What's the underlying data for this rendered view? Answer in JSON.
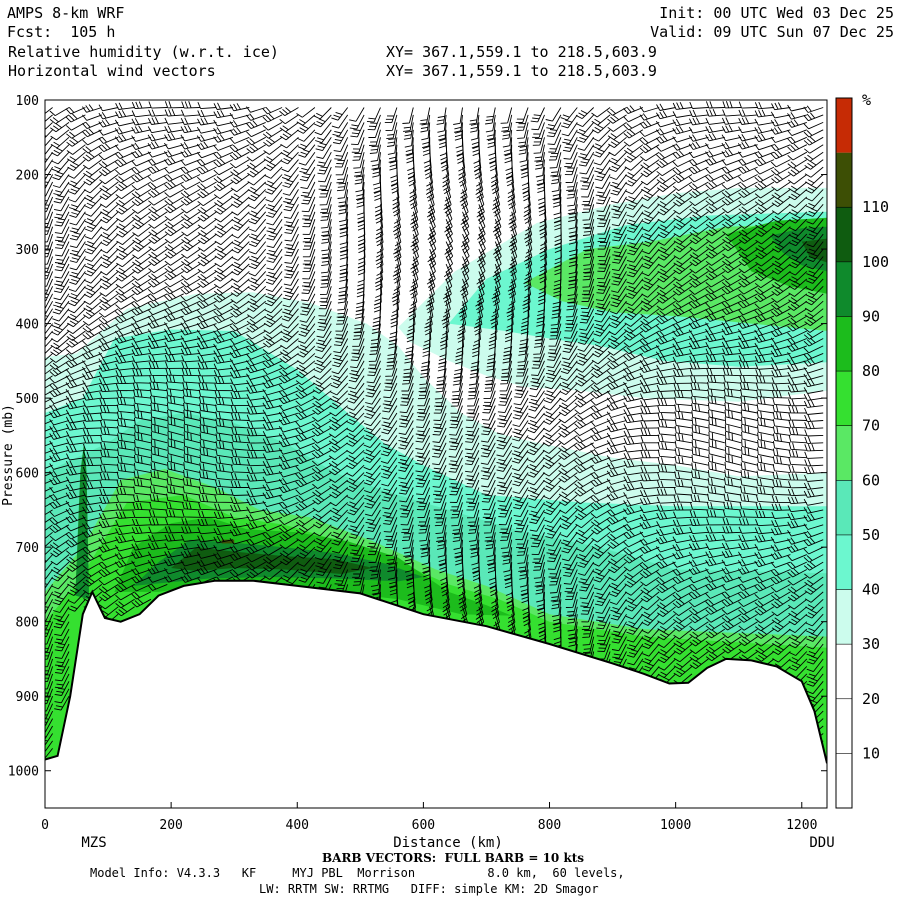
{
  "header": {
    "model": "AMPS 8-km WRF",
    "fcst": "Fcst:  105 h",
    "field1": "Relative humidity (w.r.t. ice)",
    "field2": "Horizontal wind vectors",
    "xy1": "XY= 367.1,559.1 to 218.5,603.9",
    "xy2": "XY= 367.1,559.1 to 218.5,603.9",
    "init": "Init: 00 UTC Wed 03 Dec 25",
    "valid": "Valid: 09 UTC Sun 07 Dec 25"
  },
  "footer": {
    "barb": "BARB VECTORS:  FULL BARB = 10 kts",
    "model_info": "Model Info: V4.3.3   KF     MYJ PBL  Morrison          8.0 km,  60 levels,",
    "physics": "LW: RRTM SW: RRTMG   DIFF: simple KM: 2D Smagor"
  },
  "chart_data": {
    "type": "heatmap",
    "title": "Relative humidity (w.r.t. ice) cross-section with horizontal wind barbs",
    "xlabel": "Distance (km)",
    "ylabel": "Pressure (mb)",
    "x_range": [
      0,
      1240
    ],
    "y_range": [
      1050,
      100
    ],
    "x_ticks": [
      0,
      200,
      400,
      600,
      800,
      1000,
      1200
    ],
    "y_ticks": [
      100,
      200,
      300,
      400,
      500,
      600,
      700,
      800,
      900,
      1000
    ],
    "endpoints": {
      "left": "MZS",
      "right": "DDU"
    },
    "colorbar": {
      "unit": "%",
      "levels": [
        0,
        10,
        20,
        30,
        40,
        50,
        60,
        70,
        80,
        90,
        100,
        110,
        120
      ],
      "tick_labels": [
        "10",
        "20",
        "30",
        "40",
        "50",
        "60",
        "70",
        "80",
        "90",
        "100",
        "110"
      ],
      "colors": [
        "#ffffff",
        "#ffffff",
        "#ffffff",
        "#ccfced",
        "#6cf7cf",
        "#5ae8b8",
        "#5ae864",
        "#35e030",
        "#1cbc1c",
        "#0f8a2c",
        "#0f5c10",
        "#3d4f05",
        "#c62b05"
      ]
    },
    "terrain_pressure": [
      [
        0,
        985
      ],
      [
        20,
        980
      ],
      [
        40,
        900
      ],
      [
        60,
        790
      ],
      [
        75,
        760
      ],
      [
        95,
        795
      ],
      [
        120,
        800
      ],
      [
        150,
        790
      ],
      [
        180,
        765
      ],
      [
        220,
        752
      ],
      [
        270,
        745
      ],
      [
        330,
        745
      ],
      [
        400,
        752
      ],
      [
        500,
        762
      ],
      [
        600,
        790
      ],
      [
        700,
        806
      ],
      [
        800,
        830
      ],
      [
        900,
        856
      ],
      [
        950,
        870
      ],
      [
        990,
        883
      ],
      [
        1020,
        882
      ],
      [
        1050,
        862
      ],
      [
        1080,
        850
      ],
      [
        1120,
        852
      ],
      [
        1160,
        860
      ],
      [
        1200,
        880
      ],
      [
        1220,
        920
      ],
      [
        1240,
        990
      ]
    ],
    "humid_regions": [
      {
        "rh": 30,
        "polygon": [
          [
            0,
            445
          ],
          [
            50,
            440
          ],
          [
            130,
            380
          ],
          [
            240,
            360
          ],
          [
            330,
            358
          ],
          [
            420,
            372
          ],
          [
            510,
            400
          ],
          [
            560,
            430
          ],
          [
            600,
            472
          ],
          [
            660,
            520
          ],
          [
            720,
            548
          ],
          [
            780,
            560
          ],
          [
            900,
            580
          ],
          [
            1000,
            590
          ],
          [
            1100,
            605
          ],
          [
            1240,
            600
          ],
          [
            1240,
            1000
          ],
          [
            0,
            1000
          ]
        ]
      },
      {
        "rh": 30,
        "polygon": [
          [
            560,
            405
          ],
          [
            650,
            330
          ],
          [
            780,
            265
          ],
          [
            900,
            240
          ],
          [
            1000,
            225
          ],
          [
            1100,
            218
          ],
          [
            1240,
            218
          ],
          [
            1240,
            490
          ],
          [
            1100,
            505
          ],
          [
            950,
            500
          ],
          [
            850,
            490
          ],
          [
            760,
            485
          ],
          [
            700,
            470
          ],
          [
            640,
            450
          ],
          [
            580,
            425
          ]
        ]
      },
      {
        "rh": 40,
        "polygon": [
          [
            0,
            520
          ],
          [
            60,
            500
          ],
          [
            110,
            420
          ],
          [
            200,
            408
          ],
          [
            300,
            410
          ],
          [
            400,
            462
          ],
          [
            480,
            520
          ],
          [
            540,
            562
          ],
          [
            600,
            590
          ],
          [
            700,
            630
          ],
          [
            850,
            640
          ],
          [
            1000,
            645
          ],
          [
            1240,
            645
          ],
          [
            1240,
            1000
          ],
          [
            0,
            1000
          ]
        ]
      },
      {
        "rh": 40,
        "polygon": [
          [
            640,
            400
          ],
          [
            700,
            340
          ],
          [
            800,
            300
          ],
          [
            920,
            268
          ],
          [
            1050,
            255
          ],
          [
            1240,
            250
          ],
          [
            1240,
            452
          ],
          [
            1100,
            458
          ],
          [
            980,
            450
          ],
          [
            880,
            430
          ],
          [
            800,
            420
          ],
          [
            730,
            410
          ]
        ]
      },
      {
        "rh": 50,
        "polygon": [
          [
            0,
            600
          ],
          [
            100,
            560
          ],
          [
            150,
            530
          ],
          [
            220,
            520
          ],
          [
            290,
            530
          ],
          [
            380,
            560
          ],
          [
            460,
            600
          ],
          [
            540,
            625
          ],
          [
            640,
            650
          ],
          [
            760,
            680
          ],
          [
            880,
            700
          ],
          [
            1000,
            730
          ],
          [
            1240,
            735
          ],
          [
            1240,
            1000
          ],
          [
            0,
            1000
          ]
        ]
      },
      {
        "rh": 60,
        "polygon": [
          [
            760,
            345
          ],
          [
            860,
            300
          ],
          [
            960,
            290
          ],
          [
            1080,
            270
          ],
          [
            1240,
            265
          ],
          [
            1240,
            410
          ],
          [
            1120,
            400
          ],
          [
            1000,
            390
          ],
          [
            900,
            385
          ],
          [
            820,
            370
          ]
        ]
      },
      {
        "rh": 60,
        "polygon": [
          [
            0,
            760
          ],
          [
            60,
            700
          ],
          [
            120,
            610
          ],
          [
            190,
            595
          ],
          [
            270,
            620
          ],
          [
            340,
            650
          ],
          [
            420,
            660
          ],
          [
            520,
            692
          ],
          [
            620,
            730
          ],
          [
            700,
            752
          ],
          [
            800,
            790
          ],
          [
            950,
            810
          ],
          [
            1240,
            820
          ],
          [
            1240,
            1000
          ],
          [
            0,
            1000
          ]
        ]
      },
      {
        "rh": 70,
        "polygon": [
          [
            0,
            800
          ],
          [
            50,
            750
          ],
          [
            130,
            640
          ],
          [
            220,
            630
          ],
          [
            300,
            660
          ],
          [
            380,
            670
          ],
          [
            460,
            690
          ],
          [
            540,
            712
          ],
          [
            640,
            750
          ],
          [
            720,
            770
          ],
          [
            800,
            800
          ],
          [
            950,
            820
          ],
          [
            1240,
            835
          ],
          [
            1240,
            1000
          ],
          [
            0,
            1000
          ]
        ]
      },
      {
        "rh": 80,
        "polygon": [
          [
            110,
            760
          ],
          [
            140,
            700
          ],
          [
            200,
            668
          ],
          [
            260,
            660
          ],
          [
            320,
            676
          ],
          [
            400,
            680
          ],
          [
            480,
            692
          ],
          [
            560,
            714
          ],
          [
            640,
            760
          ],
          [
            700,
            778
          ],
          [
            740,
            792
          ],
          [
            660,
            790
          ],
          [
            560,
            770
          ],
          [
            460,
            760
          ],
          [
            360,
            752
          ],
          [
            260,
            750
          ],
          [
            180,
            760
          ]
        ]
      },
      {
        "rh": 80,
        "polygon": [
          [
            1080,
            280
          ],
          [
            1160,
            262
          ],
          [
            1240,
            258
          ],
          [
            1240,
            360
          ],
          [
            1180,
            350
          ],
          [
            1120,
            330
          ]
        ]
      },
      {
        "rh": 90,
        "polygon": [
          [
            140,
            752
          ],
          [
            180,
            720
          ],
          [
            230,
            690
          ],
          [
            300,
            694
          ],
          [
            380,
            700
          ],
          [
            460,
            708
          ],
          [
            540,
            722
          ],
          [
            600,
            740
          ],
          [
            560,
            746
          ],
          [
            460,
            742
          ],
          [
            360,
            740
          ],
          [
            260,
            742
          ]
        ]
      },
      {
        "rh": 90,
        "polygon": [
          [
            1150,
            282
          ],
          [
            1200,
            272
          ],
          [
            1240,
            270
          ],
          [
            1240,
            330
          ],
          [
            1200,
            322
          ],
          [
            1170,
            305
          ]
        ]
      },
      {
        "rh": 90,
        "polygon": [
          [
            48,
            765
          ],
          [
            56,
            600
          ],
          [
            62,
            560
          ],
          [
            66,
            600
          ],
          [
            70,
            770
          ]
        ]
      },
      {
        "rh": 100,
        "polygon": [
          [
            200,
            728
          ],
          [
            240,
            700
          ],
          [
            300,
            706
          ],
          [
            380,
            712
          ],
          [
            460,
            716
          ],
          [
            520,
            728
          ],
          [
            470,
            736
          ],
          [
            380,
            730
          ],
          [
            300,
            728
          ],
          [
            240,
            732
          ]
        ]
      },
      {
        "rh": 100,
        "polygon": [
          [
            1200,
            290
          ],
          [
            1240,
            286
          ],
          [
            1240,
            318
          ],
          [
            1212,
            310
          ]
        ]
      },
      {
        "rh": 110,
        "polygon": [
          [
            280,
            690
          ],
          [
            300,
            690
          ],
          [
            300,
            695
          ],
          [
            280,
            695
          ]
        ]
      }
    ]
  }
}
